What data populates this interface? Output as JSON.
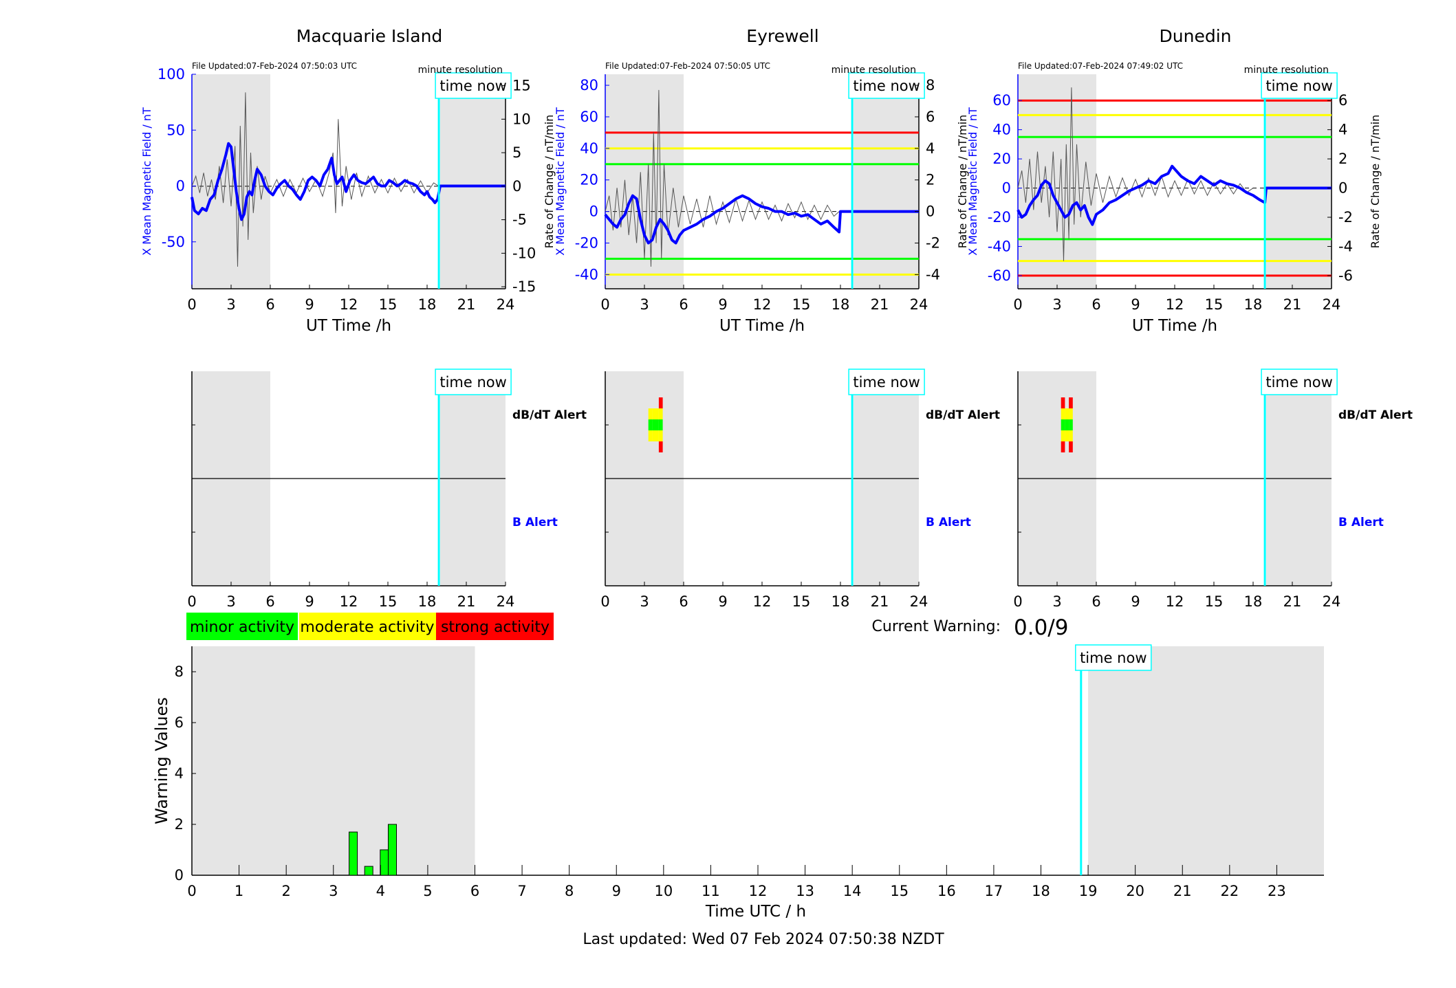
{
  "chart_data": [
    {
      "type": "line",
      "title": "Macquarie Island",
      "file_updated": "File Updated:07-Feb-2024 07:50:03 UTC",
      "resolution_label": "minute resolution",
      "time_now_label": "time now",
      "xlabel": "UT Time /h",
      "ylabel": "X Mean Magnetic Field / nT",
      "y2label": "Rate of Change / nT/min",
      "xlim": [
        0,
        24
      ],
      "xticks": [
        0,
        3,
        6,
        9,
        12,
        15,
        18,
        21,
        24
      ],
      "ylim": [
        -92,
        100
      ],
      "yticks": [
        -50,
        0,
        50,
        100
      ],
      "y2lim": [
        -15.3,
        16.7
      ],
      "y2ticks": [
        -15,
        -10,
        -5,
        0,
        5,
        10,
        15
      ],
      "night_shading_hours": [
        [
          0,
          6
        ],
        [
          19,
          24
        ]
      ],
      "time_now_hour": 18.9,
      "threshold_lines": [],
      "series": [
        {
          "name": "X Mean Magnetic Field",
          "color": "#0000ff",
          "x": [
            0,
            0.2,
            0.5,
            0.8,
            1.1,
            1.4,
            1.7,
            2.0,
            2.3,
            2.6,
            2.8,
            3.0,
            3.2,
            3.4,
            3.6,
            3.8,
            4.0,
            4.2,
            4.4,
            4.6,
            4.8,
            5.0,
            5.3,
            5.6,
            5.9,
            6.2,
            6.5,
            6.8,
            7.1,
            7.4,
            7.7,
            8.0,
            8.3,
            8.6,
            8.9,
            9.2,
            9.5,
            9.8,
            10.1,
            10.4,
            10.7,
            10.9,
            11.1,
            11.3,
            11.5,
            11.8,
            12.1,
            12.4,
            12.7,
            13.0,
            13.3,
            13.6,
            13.9,
            14.2,
            14.5,
            14.8,
            15.1,
            15.4,
            15.7,
            16.0,
            16.3,
            16.6,
            16.9,
            17.2,
            17.5,
            17.8,
            18.0,
            18.2,
            18.4,
            18.6,
            18.8,
            19.0,
            24
          ],
          "y": [
            -10,
            -22,
            -25,
            -20,
            -22,
            -12,
            -8,
            5,
            15,
            28,
            38,
            35,
            15,
            -5,
            -20,
            -30,
            -25,
            -10,
            -5,
            -8,
            5,
            15,
            10,
            0,
            -5,
            -8,
            -2,
            2,
            5,
            0,
            -3,
            -8,
            -12,
            -5,
            5,
            8,
            5,
            0,
            10,
            15,
            25,
            10,
            2,
            5,
            8,
            -5,
            5,
            10,
            5,
            3,
            2,
            5,
            8,
            2,
            0,
            0,
            5,
            3,
            0,
            2,
            5,
            3,
            2,
            0,
            -5,
            -8,
            -5,
            -10,
            -12,
            -15,
            -12,
            0,
            0
          ]
        },
        {
          "name": "Rate of Change",
          "color": "#555555",
          "x": [
            0,
            0.3,
            0.6,
            0.9,
            1.2,
            1.5,
            1.8,
            2.1,
            2.4,
            2.7,
            3.0,
            3.3,
            3.5,
            3.7,
            3.9,
            4.1,
            4.3,
            4.5,
            4.7,
            5.0,
            5.3,
            5.6,
            6.0,
            6.5,
            7.0,
            7.5,
            8.0,
            8.5,
            9.0,
            9.5,
            10.0,
            10.5,
            10.8,
            11.0,
            11.2,
            11.5,
            11.8,
            12.2,
            12.6,
            13.0,
            13.5,
            14.0,
            14.5,
            15.0,
            15.5,
            16.0,
            16.5,
            17.0,
            17.5,
            18.0,
            18.5,
            18.9
          ],
          "y": [
            0,
            1.5,
            -1,
            2,
            -1.5,
            1,
            -2,
            3,
            -2.5,
            4,
            -3,
            6,
            -12,
            9,
            -6,
            14,
            -8,
            5,
            -4,
            3,
            -2,
            1.5,
            -1,
            1,
            -1.5,
            1,
            -1,
            1.2,
            -0.8,
            1,
            -1.5,
            2,
            5,
            -4,
            10,
            -3,
            3,
            -2,
            2,
            -1.5,
            1.5,
            -1,
            1,
            -1,
            1.2,
            -0.8,
            1,
            -1,
            0.8,
            -1,
            0.5,
            0
          ]
        }
      ]
    },
    {
      "type": "line",
      "title": "Eyrewell",
      "file_updated": "File Updated:07-Feb-2024 07:50:05 UTC",
      "resolution_label": "minute resolution",
      "time_now_label": "time now",
      "xlabel": "UT Time /h",
      "ylabel": "X Mean Magnetic Field / nT",
      "y2label": "Rate of Change / nT/min",
      "xlim": [
        0,
        24
      ],
      "xticks": [
        0,
        3,
        6,
        9,
        12,
        15,
        18,
        21,
        24
      ],
      "ylim": [
        -49,
        87
      ],
      "yticks": [
        -40,
        -20,
        0,
        20,
        40,
        60,
        80
      ],
      "y2lim": [
        -4.9,
        8.7
      ],
      "y2ticks": [
        -4,
        -2,
        0,
        2,
        4,
        6,
        8
      ],
      "night_shading_hours": [
        [
          0,
          6
        ],
        [
          19,
          24
        ]
      ],
      "time_now_hour": 18.9,
      "threshold_lines": [
        {
          "level": "strong",
          "value": 50,
          "color": "#ff0000"
        },
        {
          "level": "moderate",
          "value": 40,
          "color": "#ffff00"
        },
        {
          "level": "minor",
          "value": 30,
          "color": "#00ff00"
        },
        {
          "level": "minor",
          "value": -30,
          "color": "#00ff00"
        },
        {
          "level": "moderate",
          "value": -40,
          "color": "#ffff00"
        }
      ],
      "series": [
        {
          "name": "X Mean Magnetic Field",
          "color": "#0000ff",
          "x": [
            0,
            0.3,
            0.6,
            0.9,
            1.2,
            1.5,
            1.8,
            2.1,
            2.4,
            2.7,
            3.0,
            3.3,
            3.6,
            3.9,
            4.2,
            4.5,
            4.8,
            5.1,
            5.4,
            5.7,
            6.0,
            6.5,
            7.0,
            7.5,
            8.0,
            8.5,
            9.0,
            9.5,
            10.0,
            10.5,
            11.0,
            11.5,
            12.0,
            12.5,
            13.0,
            13.5,
            14.0,
            14.5,
            15.0,
            15.5,
            16.0,
            16.5,
            17.0,
            17.5,
            17.9,
            18.0,
            24
          ],
          "y": [
            -2,
            -5,
            -8,
            -10,
            -5,
            -2,
            5,
            10,
            8,
            -5,
            -15,
            -20,
            -18,
            -10,
            -5,
            -8,
            -12,
            -18,
            -20,
            -15,
            -12,
            -10,
            -8,
            -5,
            -3,
            0,
            2,
            5,
            8,
            10,
            8,
            5,
            3,
            2,
            0,
            0,
            -2,
            -1,
            -3,
            -2,
            -5,
            -8,
            -6,
            -10,
            -13,
            0,
            0
          ]
        },
        {
          "name": "Rate of Change",
          "color": "#555555",
          "x": [
            0,
            0.3,
            0.6,
            0.9,
            1.2,
            1.5,
            1.8,
            2.1,
            2.4,
            2.7,
            3.0,
            3.3,
            3.5,
            3.7,
            3.9,
            4.1,
            4.3,
            4.5,
            4.8,
            5.2,
            5.6,
            6.0,
            6.5,
            7.0,
            7.5,
            8.0,
            8.5,
            9.0,
            9.5,
            10.0,
            10.5,
            11.0,
            11.5,
            12.0,
            12.5,
            13.0,
            13.5,
            14.0,
            14.5,
            15.0,
            15.5,
            16.0,
            16.5,
            17.0,
            17.5,
            17.9
          ],
          "y": [
            0,
            1,
            -1.2,
            1.5,
            -1,
            2,
            -1.5,
            1,
            -2,
            2.5,
            -3,
            3,
            -3.5,
            5,
            -2,
            7.7,
            -3,
            3,
            -1.5,
            1.5,
            -1,
            1,
            -0.8,
            0.8,
            -1,
            1,
            -0.8,
            0.6,
            -0.7,
            0.8,
            -0.6,
            0.7,
            -0.5,
            0.6,
            -0.5,
            0.4,
            -0.6,
            0.5,
            -0.4,
            0.6,
            -0.5,
            0.4,
            -0.5,
            0.4,
            -0.3,
            0
          ]
        }
      ]
    },
    {
      "type": "line",
      "title": "Dunedin",
      "file_updated": "File Updated:07-Feb-2024 07:49:02 UTC",
      "resolution_label": "minute resolution",
      "time_now_label": "time now",
      "xlabel": "UT Time /h",
      "ylabel": "X Mean Magnetic Field / nT",
      "y2label": "Rate of Change / nT/min",
      "xlim": [
        0,
        24
      ],
      "xticks": [
        0,
        3,
        6,
        9,
        12,
        15,
        18,
        21,
        24
      ],
      "ylim": [
        -69,
        78
      ],
      "yticks": [
        -60,
        -40,
        -20,
        0,
        20,
        40,
        60
      ],
      "y2lim": [
        -6.9,
        7.8
      ],
      "y2ticks": [
        -6,
        -4,
        -2,
        0,
        2,
        4,
        6
      ],
      "night_shading_hours": [
        [
          0,
          6
        ],
        [
          19,
          24
        ]
      ],
      "time_now_hour": 18.9,
      "threshold_lines": [
        {
          "level": "strong",
          "value": 60,
          "color": "#ff0000"
        },
        {
          "level": "moderate",
          "value": 50,
          "color": "#ffff00"
        },
        {
          "level": "minor",
          "value": 35,
          "color": "#00ff00"
        },
        {
          "level": "minor",
          "value": -35,
          "color": "#00ff00"
        },
        {
          "level": "moderate",
          "value": -50,
          "color": "#ffff00"
        },
        {
          "level": "strong",
          "value": -60,
          "color": "#ff0000"
        }
      ],
      "series": [
        {
          "name": "X Mean Magnetic Field",
          "color": "#0000ff",
          "x": [
            0,
            0.3,
            0.6,
            0.9,
            1.2,
            1.5,
            1.8,
            2.1,
            2.4,
            2.7,
            3.0,
            3.3,
            3.6,
            3.9,
            4.2,
            4.5,
            4.8,
            5.1,
            5.4,
            5.7,
            6.0,
            6.5,
            7.0,
            7.5,
            8.0,
            8.5,
            9.0,
            9.5,
            10.0,
            10.5,
            11.0,
            11.5,
            11.8,
            12.1,
            12.5,
            13.0,
            13.5,
            14.0,
            14.5,
            15.0,
            15.5,
            16.0,
            16.5,
            17.0,
            17.5,
            18.0,
            18.5,
            18.9,
            19.0,
            24
          ],
          "y": [
            -15,
            -20,
            -18,
            -12,
            -8,
            -5,
            2,
            5,
            3,
            -5,
            -10,
            -15,
            -20,
            -18,
            -12,
            -10,
            -15,
            -12,
            -20,
            -25,
            -18,
            -15,
            -10,
            -8,
            -5,
            -2,
            0,
            2,
            5,
            3,
            8,
            10,
            15,
            12,
            8,
            5,
            3,
            8,
            5,
            2,
            5,
            3,
            2,
            0,
            -3,
            -5,
            -8,
            -10,
            0,
            0
          ]
        },
        {
          "name": "Rate of Change",
          "color": "#555555",
          "x": [
            0,
            0.3,
            0.6,
            0.9,
            1.2,
            1.5,
            1.8,
            2.1,
            2.4,
            2.7,
            3.0,
            3.3,
            3.5,
            3.7,
            3.9,
            4.1,
            4.3,
            4.5,
            4.8,
            5.2,
            5.6,
            6.0,
            6.5,
            7.0,
            7.5,
            8.0,
            8.5,
            9.0,
            9.5,
            10.0,
            10.5,
            11.0,
            11.5,
            12.0,
            12.5,
            13.0,
            13.5,
            14.0,
            14.5,
            15.0,
            15.5,
            16.0,
            16.5,
            17.0,
            17.5,
            18.0
          ],
          "y": [
            0,
            1.2,
            -1,
            2,
            -1.5,
            2.5,
            -1,
            1.5,
            -2,
            2.5,
            -3,
            2,
            -5,
            3,
            -3.5,
            6.9,
            -2.5,
            3,
            -2,
            1.8,
            -1.2,
            1,
            -1,
            0.8,
            -0.6,
            0.7,
            -0.5,
            0.6,
            -0.6,
            0.7,
            -0.5,
            0.8,
            -0.6,
            0.5,
            -0.5,
            0.6,
            -0.4,
            0.5,
            -0.5,
            0.4,
            -0.4,
            0.3,
            -0.4,
            0.3,
            -0.3,
            0
          ]
        }
      ]
    },
    {
      "type": "heatmap",
      "station": "Macquarie Island",
      "row_labels": [
        "dB/dT Alert",
        "B Alert"
      ],
      "time_now_label": "time now",
      "xlim": [
        0,
        24
      ],
      "xticks": [
        0,
        3,
        6,
        9,
        12,
        15,
        18,
        21,
        24
      ],
      "night_shading_hours": [
        [
          0,
          6
        ],
        [
          19,
          24
        ]
      ],
      "time_now_hour": 18.9,
      "dbdt_alert_bars": [],
      "b_alert_bars": []
    },
    {
      "type": "heatmap",
      "station": "Eyrewell",
      "row_labels": [
        "dB/dT Alert",
        "B Alert"
      ],
      "time_now_label": "time now",
      "xlim": [
        0,
        24
      ],
      "xticks": [
        0,
        3,
        6,
        9,
        12,
        15,
        18,
        21,
        24
      ],
      "night_shading_hours": [
        [
          0,
          6
        ],
        [
          19,
          24
        ]
      ],
      "time_now_hour": 18.9,
      "dbdt_alert_bars": [
        {
          "x0": 3.3,
          "x1": 3.6,
          "levels": [
            "moderate",
            "minor",
            "moderate"
          ]
        },
        {
          "x0": 3.6,
          "x1": 4.1,
          "levels": [
            "moderate",
            "minor",
            "moderate"
          ]
        },
        {
          "x0": 4.1,
          "x1": 4.4,
          "levels": [
            "strong",
            "moderate",
            "minor",
            "moderate",
            "strong"
          ]
        }
      ],
      "b_alert_bars": []
    },
    {
      "type": "heatmap",
      "station": "Dunedin",
      "row_labels": [
        "dB/dT Alert",
        "B Alert"
      ],
      "time_now_label": "time now",
      "xlim": [
        0,
        24
      ],
      "xticks": [
        0,
        3,
        6,
        9,
        12,
        15,
        18,
        21,
        24
      ],
      "night_shading_hours": [
        [
          0,
          6
        ],
        [
          19,
          24
        ]
      ],
      "time_now_hour": 18.9,
      "dbdt_alert_bars": [
        {
          "x0": 3.3,
          "x1": 3.6,
          "levels": [
            "strong",
            "moderate",
            "minor",
            "moderate",
            "strong"
          ]
        },
        {
          "x0": 3.6,
          "x1": 3.9,
          "levels": [
            "moderate",
            "minor",
            "moderate"
          ]
        },
        {
          "x0": 3.9,
          "x1": 4.2,
          "levels": [
            "strong",
            "moderate",
            "minor",
            "moderate",
            "strong"
          ]
        }
      ],
      "b_alert_bars": []
    },
    {
      "type": "bar",
      "xlabel": "Time UTC / h",
      "ylabel": "Warning Values",
      "time_now_label": "time now",
      "xlim": [
        0,
        24
      ],
      "xticks": [
        0,
        1,
        2,
        3,
        4,
        5,
        6,
        7,
        8,
        9,
        10,
        11,
        12,
        13,
        14,
        15,
        16,
        17,
        18,
        19,
        20,
        21,
        22,
        23
      ],
      "ylim": [
        0,
        9
      ],
      "yticks": [
        0,
        2,
        4,
        6,
        8
      ],
      "night_shading_hours": [
        [
          0,
          6
        ],
        [
          19,
          24
        ]
      ],
      "time_now_hour": 18.85,
      "bar_color": "#00ff00",
      "x": [
        3.42,
        3.75,
        4.08,
        4.25
      ],
      "values": [
        1.7,
        0.35,
        1.0,
        2.0
      ]
    }
  ],
  "legend": [
    {
      "label": "minor activity",
      "color": "#00ff00"
    },
    {
      "label": "moderate activity",
      "color": "#ffff00"
    },
    {
      "label": "strong activity",
      "color": "#ff0000"
    }
  ],
  "current_warning": {
    "label": "Current Warning:",
    "value": "0.0/9"
  },
  "last_updated": "Last updated: Wed 07 Feb 2024 07:50:38 NZDT"
}
